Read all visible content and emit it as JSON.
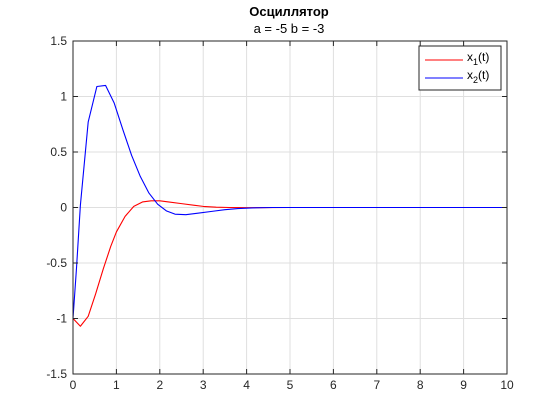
{
  "chart_data": {
    "type": "line",
    "title": "Осциллятор",
    "subtitle": "a = -5 b = -3",
    "xlabel": "",
    "ylabel": "",
    "xlim": [
      0,
      10
    ],
    "ylim": [
      -1.5,
      1.5
    ],
    "xticks": [
      0,
      1,
      2,
      3,
      4,
      5,
      6,
      7,
      8,
      9,
      10
    ],
    "yticks": [
      -1.5,
      -1,
      -0.5,
      0,
      0.5,
      1,
      1.5
    ],
    "xtick_labels": [
      "0",
      "1",
      "2",
      "3",
      "4",
      "5",
      "6",
      "7",
      "8",
      "9",
      "10"
    ],
    "ytick_labels": [
      "-1.5",
      "-1",
      "-0.5",
      "0",
      "0.5",
      "1",
      "1.5"
    ],
    "grid": true,
    "legend_position": "top-right",
    "series": [
      {
        "name_base": "x",
        "name_sub": "1",
        "name_suffix": "(t)",
        "color": "#ff0000",
        "x": [
          0,
          0.17,
          0.35,
          0.52,
          0.7,
          0.87,
          1.0,
          1.2,
          1.4,
          1.6,
          1.8,
          2.0,
          2.2,
          2.5,
          2.8,
          3.0,
          3.3,
          3.6,
          4.0,
          4.5,
          5.0,
          6.0,
          7.0,
          8.0,
          9.0,
          10.0
        ],
        "y": [
          -1.0,
          -1.07,
          -0.98,
          -0.78,
          -0.55,
          -0.35,
          -0.22,
          -0.08,
          0.01,
          0.05,
          0.06,
          0.06,
          0.05,
          0.035,
          0.02,
          0.01,
          0.003,
          0.0,
          -0.002,
          -0.001,
          0.0,
          0.0,
          0.0,
          0.0,
          0.0,
          0.0
        ]
      },
      {
        "name_base": "x",
        "name_sub": "2",
        "name_suffix": "(t)",
        "color": "#0000ff",
        "x": [
          0,
          0.08,
          0.17,
          0.35,
          0.55,
          0.75,
          0.95,
          1.15,
          1.35,
          1.55,
          1.75,
          1.95,
          2.15,
          2.35,
          2.6,
          2.9,
          3.2,
          3.5,
          3.8,
          4.2,
          4.6,
          5.0,
          6.0,
          7.0,
          8.0,
          9.0,
          10.0
        ],
        "y": [
          -1.0,
          -0.55,
          0.02,
          0.77,
          1.09,
          1.1,
          0.94,
          0.7,
          0.47,
          0.28,
          0.13,
          0.03,
          -0.03,
          -0.06,
          -0.065,
          -0.05,
          -0.035,
          -0.02,
          -0.01,
          -0.003,
          0.0,
          0.0,
          0.0,
          0.0,
          0.0,
          0.0,
          0.0
        ]
      }
    ]
  }
}
